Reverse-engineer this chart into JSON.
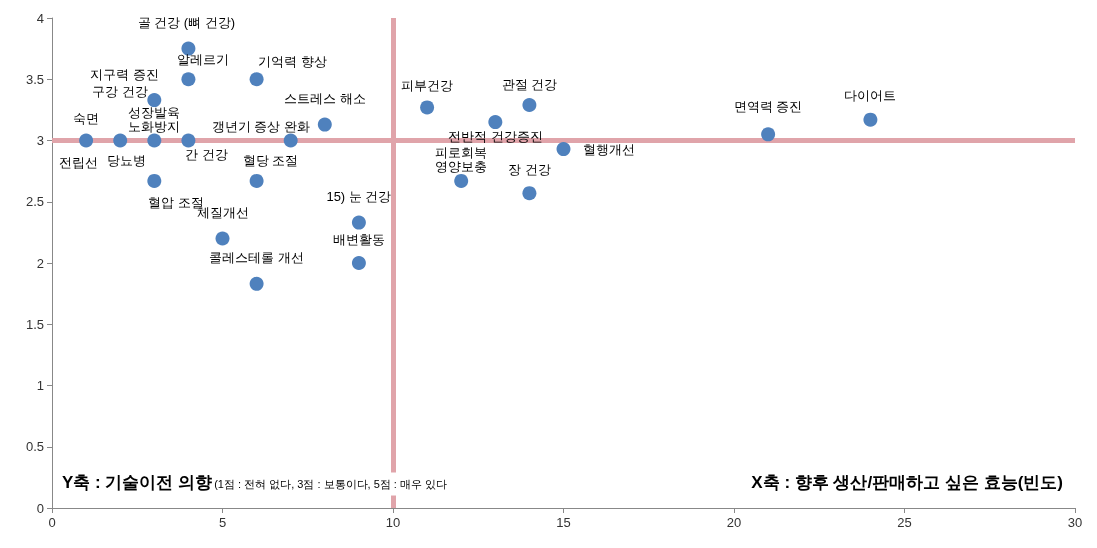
{
  "chart_data": {
    "type": "scatter",
    "xlim": [
      0,
      30
    ],
    "ylim": [
      0,
      4
    ],
    "xticks": [
      0,
      5,
      10,
      15,
      20,
      25,
      30
    ],
    "yticks": [
      0,
      0.5,
      1,
      1.5,
      2,
      2.5,
      3,
      3.5,
      4
    ],
    "grid": false,
    "marker": "circle",
    "series": [
      {
        "color": "#4f81bd",
        "x": [
          1,
          2,
          3,
          3,
          3,
          4,
          4,
          4,
          5,
          6,
          6,
          6,
          7,
          8,
          9,
          9,
          11,
          13,
          14,
          15,
          12,
          14,
          21,
          24
        ],
        "values": [
          3,
          3,
          3.33,
          3,
          2.67,
          3.75,
          3.5,
          3,
          2.2,
          3.5,
          2.67,
          1.83,
          3,
          3.13,
          2.33,
          2,
          3.27,
          3.15,
          3.29,
          2.93,
          2.67,
          2.57,
          3.05,
          3.17
        ]
      }
    ],
    "ref_lines": [
      {
        "axis": "x",
        "value": 10,
        "color": "#e0a4aa"
      },
      {
        "axis": "y",
        "value": 3,
        "color": "#e0a4aa"
      }
    ],
    "annotations": [
      {
        "text": "숙면",
        "x": 1,
        "y": 3
      },
      {
        "text": "전립선",
        "x": 1,
        "y": 3
      },
      {
        "text": "당뇨병",
        "x": 2,
        "y": 3
      },
      {
        "text": "지구력 증진",
        "x": 3,
        "y": 3.33
      },
      {
        "text": "구강 건강",
        "x": 3,
        "y": 3.33
      },
      {
        "text": "성장발육",
        "x": 3,
        "y": 3
      },
      {
        "text": "노화방지",
        "x": 3,
        "y": 3
      },
      {
        "text": "혈압 조절",
        "x": 3,
        "y": 2.67
      },
      {
        "text": "골 건강 (뼈 건강)",
        "x": 4,
        "y": 3.75
      },
      {
        "text": "알레르기",
        "x": 4,
        "y": 3.5
      },
      {
        "text": "간 건강",
        "x": 4,
        "y": 3
      },
      {
        "text": "체질개선",
        "x": 5,
        "y": 2.2
      },
      {
        "text": "기억력 향상",
        "x": 6,
        "y": 3.5
      },
      {
        "text": "혈당 조절",
        "x": 6,
        "y": 2.67
      },
      {
        "text": "콜레스테롤 개선",
        "x": 6,
        "y": 1.83
      },
      {
        "text": "갱년기 증상 완화",
        "x": 7,
        "y": 3
      },
      {
        "text": "스트레스 해소",
        "x": 8,
        "y": 3.13
      },
      {
        "text": "15) 눈 건강",
        "x": 9,
        "y": 2.33
      },
      {
        "text": "배변활동",
        "x": 9,
        "y": 2
      },
      {
        "text": "피부건강",
        "x": 11,
        "y": 3.27
      },
      {
        "text": "전반적 건강증진",
        "x": 13,
        "y": 3.15
      },
      {
        "text": "관절 건강",
        "x": 14,
        "y": 3.29
      },
      {
        "text": "혈행개선",
        "x": 15,
        "y": 2.93
      },
      {
        "text": "피로회복",
        "x": 12,
        "y": 2.67
      },
      {
        "text": "영양보충",
        "x": 12,
        "y": 2.67
      },
      {
        "text": "장 건강",
        "x": 14,
        "y": 2.57
      },
      {
        "text": "면역력 증진",
        "x": 21,
        "y": 3.05
      },
      {
        "text": "다이어트",
        "x": 24,
        "y": 3.17
      },
      "Y축 : 기술이전 의향",
      "(1점 : 전혀 없다, 3점 : 보통이다, 5점 : 매우 있다",
      "X축 : 향후 생산/판매하고 싶은 효능(빈도)"
    ]
  }
}
